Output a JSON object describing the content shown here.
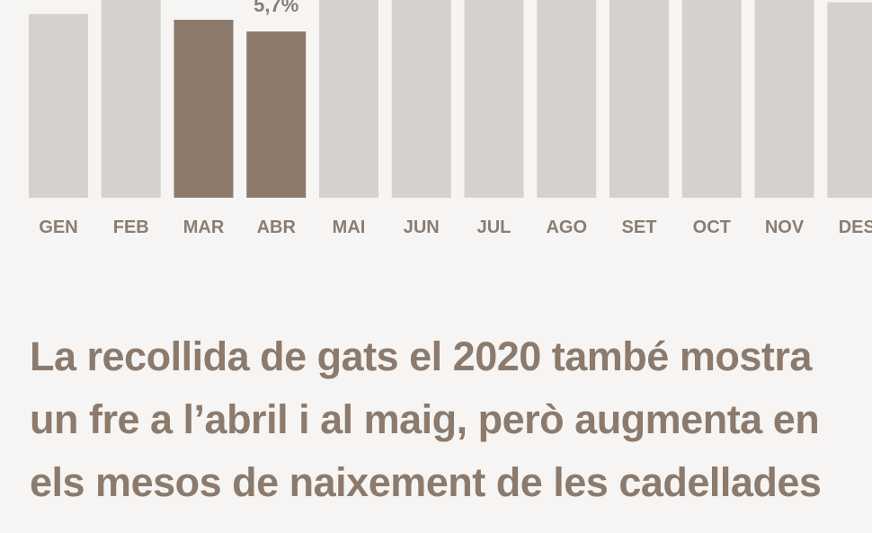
{
  "chart_data": {
    "type": "bar",
    "title": "La recollida de gats el 2020 també mostra un fre a l’abril i al maig, però augmenta en els mesos de naixement de les cadellades",
    "categories": [
      "GEN",
      "FEB",
      "MAR",
      "ABR",
      "MAI",
      "JUN",
      "JUL",
      "AGO",
      "SET",
      "OCT",
      "NOV",
      "DES"
    ],
    "values": [
      6.3,
      7.5,
      6.1,
      5.7,
      8,
      9,
      10,
      9.5,
      10,
      9,
      8,
      6.7
    ],
    "value_labels": [
      null,
      null,
      null,
      "5,7%",
      null,
      null,
      null,
      null,
      null,
      null,
      null,
      null
    ],
    "colors": [
      "#d6d1cc",
      "#d6d1cc",
      "#8c7b6d",
      "#8c7b6d",
      "#d6d1cc",
      "#d6d1cc",
      "#d6d1cc",
      "#d6d1cc",
      "#d6d1cc",
      "#d6d1cc",
      "#d6d1cc",
      "#d6d1cc"
    ]
  }
}
